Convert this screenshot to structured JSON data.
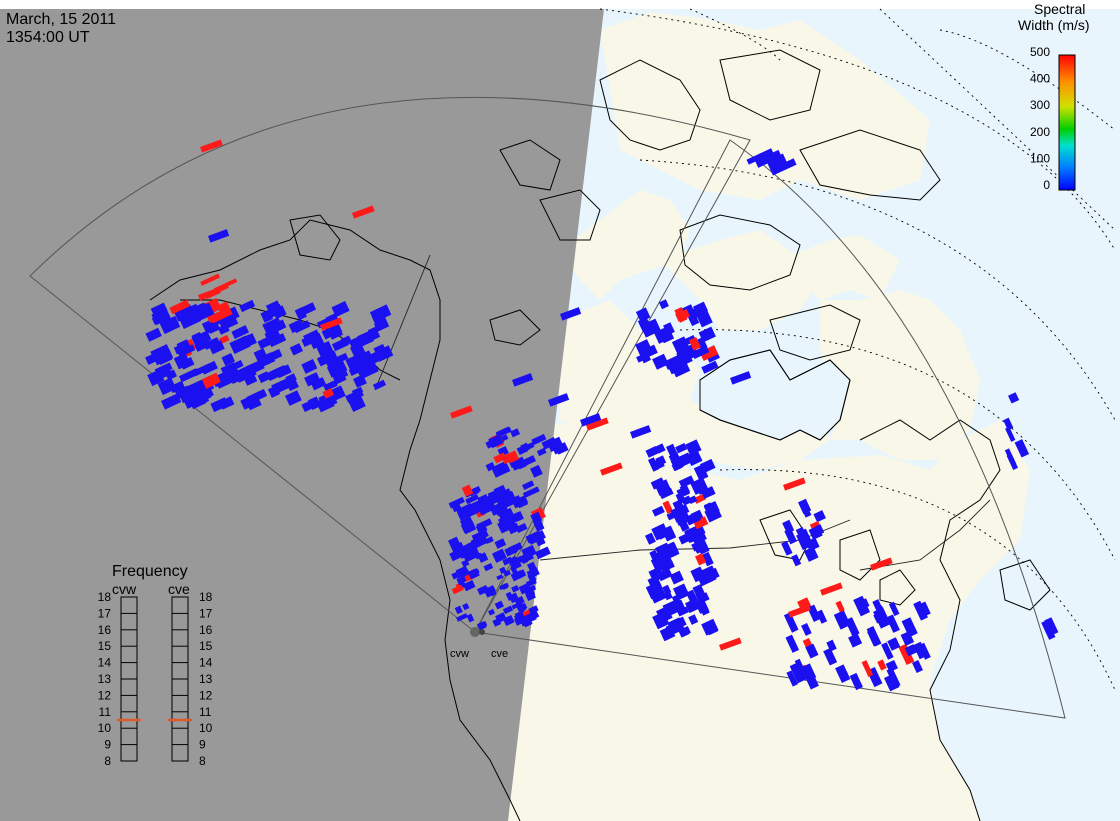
{
  "header": {
    "date": "March, 15 2011",
    "time": "1354:00 UT"
  },
  "colorbar": {
    "title_line1": "Spectral",
    "title_line2": "Width (m/s)",
    "ticks": [
      "500",
      "400",
      "300",
      "200",
      "100",
      "0"
    ],
    "colors": [
      "#0000ff",
      "#0080ff",
      "#00e0e0",
      "#00d000",
      "#e0e000",
      "#ff8000",
      "#ff0000"
    ]
  },
  "frequency": {
    "title": "Frequency",
    "radars": [
      {
        "name": "cvw",
        "selected": 10.5
      },
      {
        "name": "cve",
        "selected": 10.5
      }
    ],
    "levels": [
      "18",
      "17",
      "16",
      "15",
      "14",
      "13",
      "12",
      "11",
      "10",
      "9",
      "8"
    ]
  },
  "stations": {
    "west": "cvw",
    "east": "cve"
  },
  "colors": {
    "night": "#999999",
    "day_land": "#f9f8e8",
    "day_ocean": "#e8f5fc",
    "echo_low": "#1a10f0",
    "echo_high": "#ff1a1a",
    "freq_marker": "#e05a2a"
  }
}
